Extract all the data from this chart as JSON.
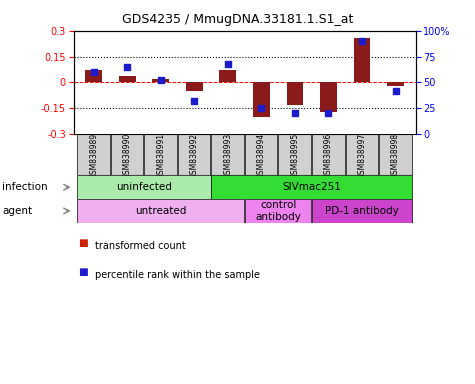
{
  "title": "GDS4235 / MmugDNA.33181.1.S1_at",
  "samples": [
    "GSM838989",
    "GSM838990",
    "GSM838991",
    "GSM838992",
    "GSM838993",
    "GSM838994",
    "GSM838995",
    "GSM838996",
    "GSM838997",
    "GSM838998"
  ],
  "bar_values": [
    0.07,
    0.04,
    0.02,
    -0.05,
    0.07,
    -0.2,
    -0.13,
    -0.17,
    0.26,
    -0.02
  ],
  "dot_values": [
    60,
    65,
    52,
    32,
    68,
    25,
    20,
    20,
    90,
    42
  ],
  "ylim_left": [
    -0.3,
    0.3
  ],
  "ylim_right": [
    0,
    100
  ],
  "yticks_left": [
    -0.3,
    -0.15,
    0.0,
    0.15,
    0.3
  ],
  "yticks_right": [
    0,
    25,
    50,
    75,
    100
  ],
  "ytick_labels_left": [
    "-0.3",
    "-0.15",
    "0",
    "0.15",
    "0.3"
  ],
  "ytick_labels_right": [
    "0",
    "25",
    "50",
    "75",
    "100%"
  ],
  "hlines": [
    0.15,
    0.0,
    -0.15
  ],
  "bar_color": "#8B1A1A",
  "dot_color": "#1C1CCD",
  "infection_labels": [
    {
      "text": "uninfected",
      "start": 0,
      "end": 3,
      "color": "#AAEAAA"
    },
    {
      "text": "SIVmac251",
      "start": 4,
      "end": 9,
      "color": "#33DD33"
    }
  ],
  "agent_labels": [
    {
      "text": "untreated",
      "start": 0,
      "end": 4,
      "color": "#F0B0F0"
    },
    {
      "text": "control\nantibody",
      "start": 5,
      "end": 6,
      "color": "#EE82EE"
    },
    {
      "text": "PD-1 antibody",
      "start": 7,
      "end": 9,
      "color": "#CC44CC"
    }
  ],
  "legend_items": [
    {
      "color": "#CC2200",
      "label": "transformed count"
    },
    {
      "color": "#1C1CCD",
      "label": "percentile rank within the sample"
    }
  ],
  "background_color": "#FFFFFF",
  "plot_bg": "#FFFFFF",
  "sample_bg": "#D0D0D0"
}
